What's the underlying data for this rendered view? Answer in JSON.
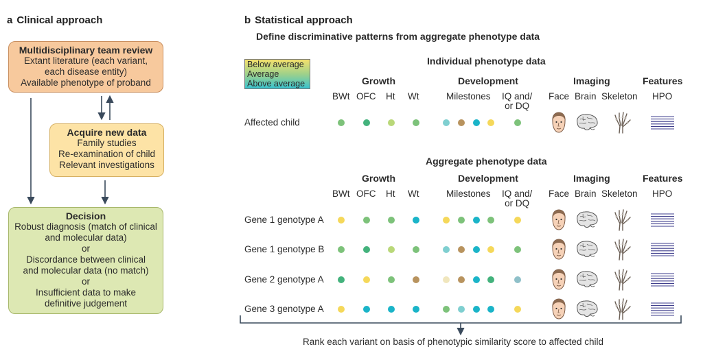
{
  "colors": {
    "yellow": "#f5d85a",
    "ltgreen": "#b9d879",
    "green": "#7dc27a",
    "dkgreen": "#43b27c",
    "teal": "#1ab4c8",
    "ltteal": "#7fcfd0",
    "brown": "#b8935e",
    "pale": "#f0e6bd",
    "steel": "#8fc0c9"
  },
  "panel_a": {
    "letter": "a",
    "title": "Clinical approach",
    "mdt": {
      "title": "Multidisciplinary team review",
      "lines": [
        "Extant literature (each variant,",
        "each disease entity)",
        "Available phenotype of proband"
      ]
    },
    "acquire": {
      "title": "Acquire new data",
      "lines": [
        "Family studies",
        "Re-examination of child",
        "Relevant investigations"
      ]
    },
    "decision": {
      "title": "Decision",
      "lines": [
        "Robust diagnosis (match of clinical",
        "and molecular data)",
        "or",
        "Discordance between clinical",
        "and molecular data (no match)",
        "or",
        "Insufficient data to make",
        "definitive judgement"
      ]
    }
  },
  "panel_b": {
    "letter": "b",
    "title": "Statistical approach",
    "subtitle": "Define discriminative patterns from aggregate phenotype data",
    "legend": [
      "Below average",
      "Average",
      "Above average"
    ],
    "individual_title": "Individual phenotype data",
    "aggregate_title": "Aggregate phenotype data",
    "groups": [
      "Growth",
      "Development",
      "Imaging",
      "Features"
    ],
    "columns": {
      "bwt": "BWt",
      "ofc": "OFC",
      "ht": "Ht",
      "wt": "Wt",
      "milestones": "Milestones",
      "iq1": "IQ and/",
      "iq2": "or DQ",
      "face": "Face",
      "brain": "Brain",
      "skeleton": "Skeleton",
      "hpo": "HPO"
    },
    "individual_row": {
      "label": "Affected child",
      "dots": [
        "green",
        "dkgreen",
        "ltgreen",
        "green",
        "ltteal",
        "brown",
        "teal",
        "yellow",
        "green"
      ]
    },
    "aggregate_rows": [
      {
        "label": "Gene 1 genotype A",
        "dots": [
          "yellow",
          "green",
          "green",
          "teal",
          "yellow",
          "green",
          "teal",
          "green",
          "yellow"
        ]
      },
      {
        "label": "Gene 1 genotype B",
        "dots": [
          "green",
          "dkgreen",
          "ltgreen",
          "green",
          "ltteal",
          "brown",
          "teal",
          "yellow",
          "green"
        ]
      },
      {
        "label": "Gene 2 genotype A",
        "dots": [
          "dkgreen",
          "yellow",
          "green",
          "brown",
          "pale",
          "brown",
          "teal",
          "dkgreen",
          "steel"
        ]
      },
      {
        "label": "Gene 3 genotype A",
        "dots": [
          "yellow",
          "teal",
          "teal",
          "teal",
          "green",
          "ltteal",
          "teal",
          "teal",
          "yellow"
        ]
      }
    ],
    "footer": "Rank each variant on basis of phenotypic similarity score to affected child"
  }
}
